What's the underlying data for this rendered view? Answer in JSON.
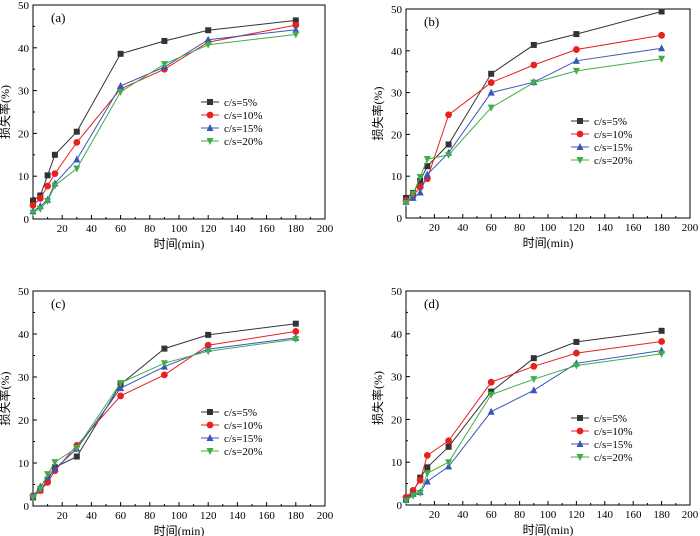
{
  "chart_data": [
    {
      "type": "line",
      "panel_label": "(a)",
      "xlabel": "时间(min)",
      "ylabel": "损失率(%)",
      "xlim": [
        0,
        200
      ],
      "ylim": [
        0,
        50
      ],
      "x_ticks": [
        "20",
        "40",
        "60",
        "80",
        "100",
        "120",
        "140",
        "160",
        "180",
        "200"
      ],
      "y_ticks": [
        "0",
        "10",
        "20",
        "30",
        "40",
        "50"
      ],
      "legend_position": "center-right",
      "x": [
        0,
        5,
        10,
        15,
        30,
        60,
        90,
        120,
        180
      ],
      "series": [
        {
          "name": "c/s=5%",
          "color": "#333333",
          "marker": "square",
          "values": [
            4.3,
            5.5,
            10.2,
            15.0,
            20.4,
            38.6,
            41.6,
            44.1,
            46.4
          ]
        },
        {
          "name": "c/s=10%",
          "color": "#e8201e",
          "marker": "circle",
          "values": [
            3.2,
            4.8,
            7.7,
            10.6,
            17.9,
            30.4,
            35.0,
            41.3,
            45.3
          ]
        },
        {
          "name": "c/s=15%",
          "color": "#3a55b8",
          "marker": "triangle-up",
          "values": [
            1.8,
            3.0,
            4.5,
            8.3,
            13.9,
            31.1,
            35.5,
            41.9,
            44.2
          ]
        },
        {
          "name": "c/s=20%",
          "color": "#3fae49",
          "marker": "triangle-down",
          "values": [
            1.5,
            2.4,
            4.2,
            7.8,
            11.8,
            29.7,
            36.2,
            40.7,
            43.1
          ]
        }
      ]
    },
    {
      "type": "line",
      "panel_label": "(b)",
      "xlabel": "时间(min)",
      "ylabel": "损失率(%)",
      "xlim": [
        0,
        200
      ],
      "ylim": [
        0,
        50
      ],
      "x_ticks": [
        "20",
        "40",
        "60",
        "80",
        "100",
        "120",
        "140",
        "160",
        "180",
        "200"
      ],
      "y_ticks": [
        "0",
        "10",
        "20",
        "30",
        "40",
        "50"
      ],
      "legend_position": "lower-right",
      "x": [
        0,
        5,
        10,
        15,
        30,
        60,
        90,
        120,
        180
      ],
      "series": [
        {
          "name": "c/s=5%",
          "color": "#333333",
          "marker": "square",
          "values": [
            4.8,
            6.0,
            8.9,
            12.4,
            17.6,
            34.5,
            41.4,
            44.0,
            49.4
          ]
        },
        {
          "name": "c/s=10%",
          "color": "#e8201e",
          "marker": "circle",
          "values": [
            4.2,
            5.3,
            7.4,
            9.4,
            24.7,
            32.4,
            36.6,
            40.3,
            43.7
          ]
        },
        {
          "name": "c/s=15%",
          "color": "#3a55b8",
          "marker": "triangle-up",
          "values": [
            3.9,
            4.8,
            6.1,
            10.4,
            15.6,
            30.0,
            32.5,
            37.6,
            40.6
          ]
        },
        {
          "name": "c/s=20%",
          "color": "#3fae49",
          "marker": "triangle-down",
          "values": [
            3.6,
            5.8,
            9.8,
            14.1,
            15.1,
            26.4,
            32.4,
            35.2,
            38.1
          ]
        }
      ]
    },
    {
      "type": "line",
      "panel_label": "(c)",
      "xlabel": "时间(min)",
      "ylabel": "损失率(%)",
      "xlim": [
        0,
        200
      ],
      "ylim": [
        0,
        50
      ],
      "x_ticks": [
        "20",
        "40",
        "60",
        "80",
        "100",
        "120",
        "140",
        "160",
        "180",
        "200"
      ],
      "y_ticks": [
        "0",
        "10",
        "20",
        "30",
        "40",
        "50"
      ],
      "legend_position": "lower-right",
      "x": [
        0,
        5,
        10,
        15,
        30,
        60,
        90,
        120,
        180
      ],
      "series": [
        {
          "name": "c/s=5%",
          "color": "#333333",
          "marker": "square",
          "values": [
            2.0,
            3.6,
            6.1,
            9.0,
            11.5,
            28.3,
            36.6,
            39.8,
            42.4
          ]
        },
        {
          "name": "c/s=10%",
          "color": "#e8201e",
          "marker": "circle",
          "values": [
            2.4,
            3.6,
            5.5,
            8.2,
            14.1,
            25.6,
            30.5,
            37.4,
            40.6
          ]
        },
        {
          "name": "c/s=15%",
          "color": "#3a55b8",
          "marker": "triangle-up",
          "values": [
            2.2,
            4.5,
            6.6,
            8.6,
            13.3,
            27.4,
            32.4,
            36.5,
            39.1
          ]
        },
        {
          "name": "c/s=20%",
          "color": "#3fae49",
          "marker": "triangle-down",
          "values": [
            2.0,
            4.0,
            7.4,
            10.2,
            13.5,
            28.6,
            33.2,
            36.0,
            38.8
          ]
        }
      ]
    },
    {
      "type": "line",
      "panel_label": "(d)",
      "xlabel": "时间(min)",
      "ylabel": "损失率(%)",
      "xlim": [
        0,
        200
      ],
      "ylim": [
        0,
        50
      ],
      "x_ticks": [
        "20",
        "40",
        "60",
        "80",
        "100",
        "120",
        "140",
        "160",
        "180",
        "200"
      ],
      "y_ticks": [
        "0",
        "10",
        "20",
        "30",
        "40",
        "50"
      ],
      "legend_position": "lower-right",
      "x": [
        0,
        5,
        10,
        15,
        30,
        60,
        90,
        120,
        180
      ],
      "series": [
        {
          "name": "c/s=5%",
          "color": "#333333",
          "marker": "square",
          "values": [
            1.5,
            3.0,
            6.4,
            8.8,
            13.6,
            26.5,
            34.3,
            38.1,
            40.7
          ]
        },
        {
          "name": "c/s=10%",
          "color": "#e8201e",
          "marker": "circle",
          "values": [
            1.8,
            3.4,
            5.8,
            11.6,
            15.0,
            28.7,
            32.4,
            35.5,
            38.2
          ]
        },
        {
          "name": "c/s=15%",
          "color": "#3a55b8",
          "marker": "triangle-up",
          "values": [
            1.2,
            2.6,
            3.0,
            5.5,
            9.0,
            21.8,
            26.8,
            33.1,
            36.1
          ]
        },
        {
          "name": "c/s=20%",
          "color": "#3fae49",
          "marker": "triangle-down",
          "values": [
            1.0,
            2.2,
            2.8,
            7.4,
            10.0,
            25.8,
            29.4,
            32.6,
            35.3
          ]
        }
      ]
    }
  ]
}
